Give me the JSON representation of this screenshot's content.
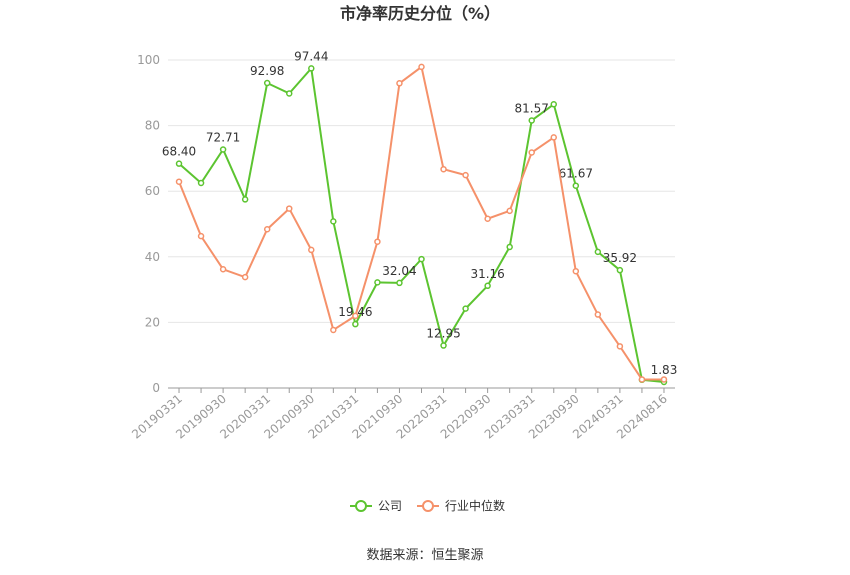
{
  "chart_data": {
    "type": "line",
    "title": "市净率历史分位（%）",
    "categories": [
      "20190331",
      null,
      "20190930",
      null,
      "20200331",
      null,
      "20200930",
      null,
      "20210331",
      null,
      "20210930",
      null,
      "20220331",
      null,
      "20220930",
      null,
      "20230331",
      null,
      "20230930",
      null,
      "20240331",
      null,
      "20240816"
    ],
    "series": [
      {
        "name": "公司",
        "color": "#5cc430",
        "values": [
          68.4,
          62.5,
          72.71,
          57.5,
          92.98,
          89.8,
          97.44,
          50.8,
          19.46,
          32.2,
          32.04,
          39.3,
          12.95,
          24.2,
          31.16,
          43.0,
          81.57,
          86.5,
          61.67,
          41.5,
          35.92,
          2.5,
          1.83
        ],
        "value_labels": [
          "68.40",
          null,
          "72.71",
          null,
          "92.98",
          null,
          "97.44",
          null,
          "19.46",
          null,
          "32.04",
          null,
          "12.95",
          null,
          "31.16",
          null,
          "81.57",
          null,
          "61.67",
          null,
          "35.92",
          null,
          "1.83"
        ]
      },
      {
        "name": "行业中位数",
        "color": "#f5916a",
        "values": [
          62.9,
          46.3,
          36.2,
          33.8,
          48.4,
          54.7,
          42.1,
          17.7,
          22.0,
          44.6,
          92.9,
          97.9,
          66.7,
          64.9,
          51.6,
          54.0,
          71.8,
          76.4,
          35.6,
          22.4,
          12.7,
          2.6,
          2.6
        ]
      }
    ],
    "ylim": [
      0,
      100
    ],
    "yticks": [
      0,
      20,
      40,
      60,
      80,
      100
    ],
    "grid": true,
    "source": "数据来源：恒生聚源"
  }
}
